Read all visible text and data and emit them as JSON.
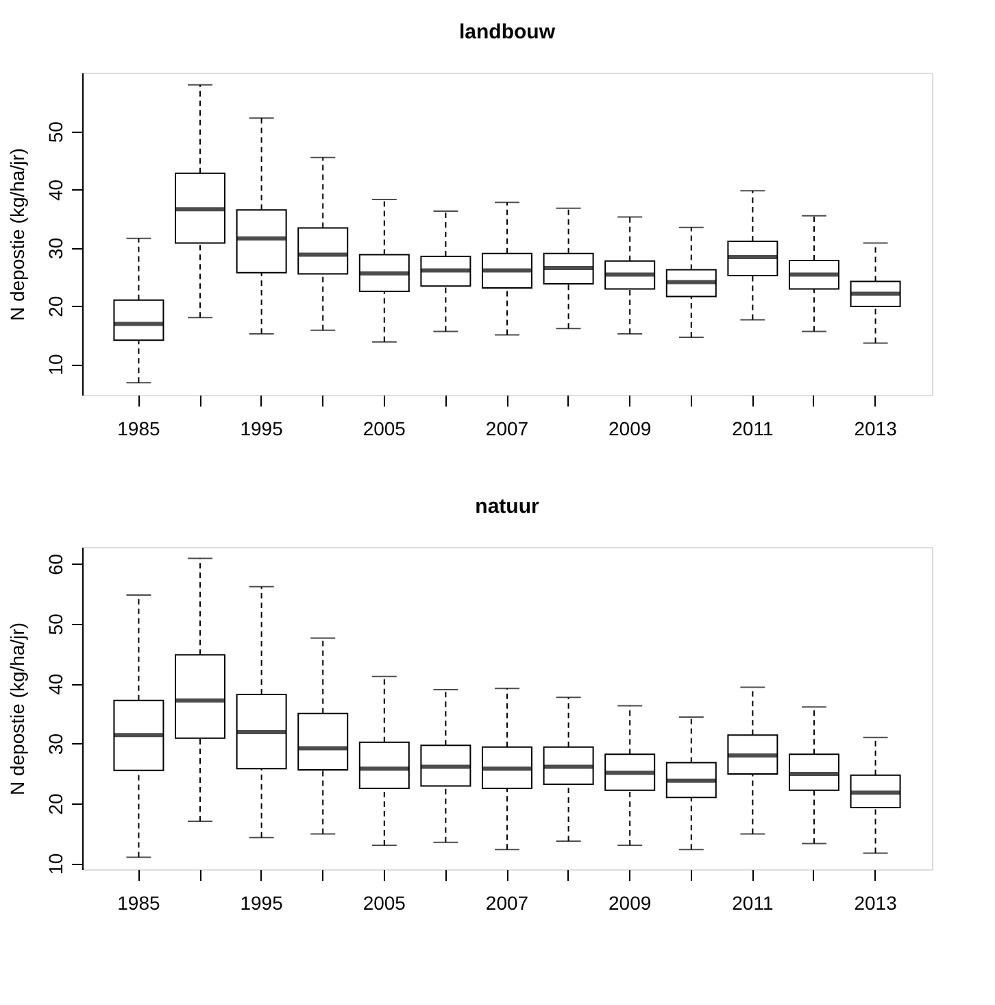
{
  "chart_data": [
    {
      "type": "box",
      "title": "landbouw",
      "ylabel": "N depostie (kg/ha/jr)",
      "categories": [
        "1985",
        null,
        "1995",
        null,
        "2005",
        null,
        "2007",
        null,
        "2009",
        null,
        "2011",
        null,
        "2013"
      ],
      "boxes": [
        {
          "low": 6.8,
          "q1": 14.1,
          "median": 16.9,
          "q3": 21.0,
          "high": 31.6
        },
        {
          "low": 18.0,
          "q1": 30.8,
          "median": 36.6,
          "q3": 42.8,
          "high": 58.0
        },
        {
          "low": 15.2,
          "q1": 25.7,
          "median": 31.6,
          "q3": 36.5,
          "high": 52.3
        },
        {
          "low": 15.8,
          "q1": 25.5,
          "median": 28.8,
          "q3": 33.4,
          "high": 45.5
        },
        {
          "low": 13.8,
          "q1": 22.5,
          "median": 25.6,
          "q3": 28.8,
          "high": 38.3
        },
        {
          "low": 15.6,
          "q1": 23.4,
          "median": 26.1,
          "q3": 28.5,
          "high": 36.3
        },
        {
          "low": 15.0,
          "q1": 23.1,
          "median": 26.1,
          "q3": 29.0,
          "high": 37.8
        },
        {
          "low": 16.1,
          "q1": 23.8,
          "median": 26.5,
          "q3": 29.0,
          "high": 36.8
        },
        {
          "low": 15.2,
          "q1": 22.9,
          "median": 25.4,
          "q3": 27.7,
          "high": 35.3
        },
        {
          "low": 14.6,
          "q1": 21.6,
          "median": 24.1,
          "q3": 26.2,
          "high": 33.5
        },
        {
          "low": 17.6,
          "q1": 25.2,
          "median": 28.4,
          "q3": 31.1,
          "high": 39.8
        },
        {
          "low": 15.6,
          "q1": 22.9,
          "median": 25.4,
          "q3": 27.8,
          "high": 35.5
        },
        {
          "low": 13.6,
          "q1": 19.9,
          "median": 22.1,
          "q3": 24.2,
          "high": 30.8
        }
      ],
      "ylim": [
        4.7,
        60.1
      ],
      "yticks": [
        10,
        20,
        30,
        40,
        50
      ],
      "grid": false
    },
    {
      "type": "box",
      "title": "natuur",
      "ylabel": "N depostie (kg/ha/jr)",
      "categories": [
        "1985",
        null,
        "1995",
        null,
        "2005",
        null,
        "2007",
        null,
        "2009",
        null,
        "2011",
        null,
        "2013"
      ],
      "boxes": [
        {
          "low": 11.0,
          "q1": 25.5,
          "median": 31.4,
          "q3": 37.2,
          "high": 54.8
        },
        {
          "low": 17.0,
          "q1": 30.9,
          "median": 37.2,
          "q3": 44.8,
          "high": 60.9
        },
        {
          "low": 14.3,
          "q1": 25.8,
          "median": 31.9,
          "q3": 38.2,
          "high": 56.2
        },
        {
          "low": 14.9,
          "q1": 25.6,
          "median": 29.2,
          "q3": 35.0,
          "high": 47.6
        },
        {
          "low": 13.0,
          "q1": 22.5,
          "median": 25.8,
          "q3": 30.2,
          "high": 41.2
        },
        {
          "low": 13.5,
          "q1": 22.9,
          "median": 26.1,
          "q3": 29.7,
          "high": 39.0
        },
        {
          "low": 12.3,
          "q1": 22.5,
          "median": 25.8,
          "q3": 29.4,
          "high": 39.2
        },
        {
          "low": 13.7,
          "q1": 23.2,
          "median": 26.1,
          "q3": 29.4,
          "high": 37.7
        },
        {
          "low": 13.0,
          "q1": 22.2,
          "median": 25.1,
          "q3": 28.2,
          "high": 36.3
        },
        {
          "low": 12.3,
          "q1": 21.0,
          "median": 23.8,
          "q3": 26.8,
          "high": 34.4
        },
        {
          "low": 14.9,
          "q1": 24.9,
          "median": 28.0,
          "q3": 31.4,
          "high": 39.4
        },
        {
          "low": 13.3,
          "q1": 22.2,
          "median": 24.9,
          "q3": 28.2,
          "high": 36.1
        },
        {
          "low": 11.7,
          "q1": 19.3,
          "median": 21.8,
          "q3": 24.7,
          "high": 31.0
        }
      ],
      "ylim": [
        9.0,
        62.8
      ],
      "yticks": [
        10,
        20,
        30,
        40,
        50,
        60
      ],
      "grid": false
    }
  ]
}
